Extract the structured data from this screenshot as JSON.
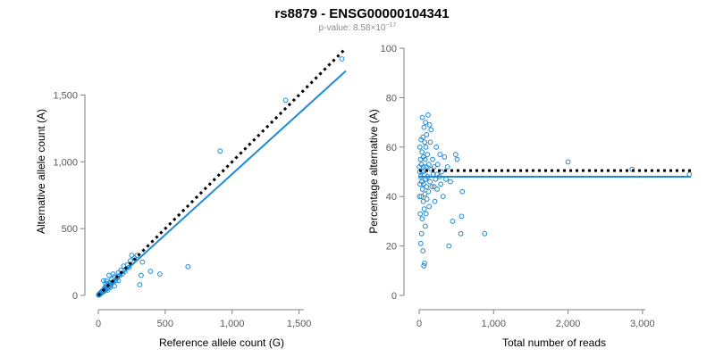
{
  "header": {
    "title": "rs8879 - ENSG00000104341",
    "pvalue_prefix": "p-value: 8.58×10",
    "pvalue_exponent": "−17"
  },
  "colors": {
    "points": "#1f8ad6",
    "fit_line": "#1f8ad6",
    "reference_line": "#000000",
    "axes": "#7f7f7f"
  },
  "chart_data": [
    {
      "type": "scatter",
      "xlabel": "Reference allele count (G)",
      "ylabel": "Alternative allele count (A)",
      "xlim": [
        0,
        1850
      ],
      "ylim": [
        0,
        1850
      ],
      "xticks": [
        0,
        500,
        1000,
        1500
      ],
      "xtick_labels": [
        "0",
        "500",
        "1,000",
        "1,500"
      ],
      "yticks": [
        0,
        500,
        1000,
        1500
      ],
      "ytick_labels": [
        "0",
        "500",
        "1,000",
        "1,500"
      ],
      "grid": false,
      "legend": "none",
      "points": [
        [
          1820,
          1770
        ],
        [
          1400,
          1460
        ],
        [
          910,
          1080
        ],
        [
          670,
          215
        ],
        [
          460,
          160
        ],
        [
          390,
          180
        ],
        [
          330,
          250
        ],
        [
          320,
          150
        ],
        [
          310,
          80
        ],
        [
          290,
          300
        ],
        [
          270,
          280
        ],
        [
          250,
          300
        ],
        [
          240,
          260
        ],
        [
          230,
          210
        ],
        [
          220,
          230
        ],
        [
          200,
          180
        ],
        [
          190,
          220
        ],
        [
          180,
          160
        ],
        [
          170,
          190
        ],
        [
          160,
          150
        ],
        [
          150,
          170
        ],
        [
          140,
          130
        ],
        [
          130,
          110
        ],
        [
          120,
          140
        ],
        [
          110,
          100
        ],
        [
          100,
          120
        ],
        [
          95,
          80
        ],
        [
          90,
          95
        ],
        [
          85,
          70
        ],
        [
          80,
          90
        ],
        [
          75,
          60
        ],
        [
          70,
          80
        ],
        [
          65,
          55
        ],
        [
          60,
          70
        ],
        [
          55,
          40
        ],
        [
          50,
          60
        ],
        [
          48,
          45
        ],
        [
          45,
          50
        ],
        [
          42,
          30
        ],
        [
          40,
          42
        ],
        [
          38,
          35
        ],
        [
          35,
          38
        ],
        [
          32,
          28
        ],
        [
          30,
          33
        ],
        [
          28,
          25
        ],
        [
          26,
          30
        ],
        [
          25,
          20
        ],
        [
          24,
          24
        ],
        [
          22,
          18
        ],
        [
          20,
          22
        ],
        [
          18,
          15
        ],
        [
          17,
          20
        ],
        [
          15,
          16
        ],
        [
          14,
          12
        ],
        [
          12,
          14
        ],
        [
          11,
          10
        ],
        [
          10,
          12
        ],
        [
          9,
          8
        ],
        [
          8,
          10
        ],
        [
          7,
          6
        ],
        [
          6,
          8
        ],
        [
          5,
          5
        ],
        [
          4,
          6
        ],
        [
          3,
          3
        ],
        [
          2,
          4
        ],
        [
          60,
          110
        ],
        [
          80,
          150
        ],
        [
          100,
          90
        ],
        [
          150,
          110
        ],
        [
          40,
          110
        ],
        [
          120,
          70
        ],
        [
          70,
          40
        ],
        [
          90,
          60
        ],
        [
          55,
          90
        ],
        [
          110,
          160
        ]
      ],
      "fit_line": {
        "x": [
          0,
          1850
        ],
        "y": [
          0,
          1680
        ]
      },
      "reference_line": {
        "x": [
          0,
          1850
        ],
        "y": [
          0,
          1850
        ]
      }
    },
    {
      "type": "scatter",
      "xlabel": "Total number of reads",
      "ylabel": "Percentage alternative (A)",
      "xlim": [
        0,
        3650
      ],
      "ylim": [
        0,
        100
      ],
      "xticks": [
        0,
        1000,
        2000,
        3000
      ],
      "xtick_labels": [
        "0",
        "1,000",
        "2,000",
        "3,000"
      ],
      "yticks": [
        0,
        20,
        40,
        60,
        80,
        100
      ],
      "ytick_labels": [
        "0",
        "20",
        "40",
        "60",
        "80",
        "100"
      ],
      "grid": false,
      "legend": "none",
      "points": [
        [
          3630,
          49
        ],
        [
          2860,
          51
        ],
        [
          2000,
          54
        ],
        [
          880,
          25
        ],
        [
          580,
          42
        ],
        [
          570,
          32
        ],
        [
          560,
          25
        ],
        [
          510,
          55
        ],
        [
          490,
          57
        ],
        [
          450,
          30
        ],
        [
          420,
          46
        ],
        [
          400,
          20
        ],
        [
          380,
          52
        ],
        [
          360,
          47
        ],
        [
          340,
          56
        ],
        [
          320,
          40
        ],
        [
          300,
          50
        ],
        [
          290,
          45
        ],
        [
          280,
          57
        ],
        [
          270,
          48
        ],
        [
          250,
          53
        ],
        [
          240,
          43
        ],
        [
          230,
          60
        ],
        [
          220,
          47
        ],
        [
          210,
          38
        ],
        [
          200,
          52
        ],
        [
          190,
          49
        ],
        [
          180,
          55
        ],
        [
          170,
          44
        ],
        [
          160,
          51
        ],
        [
          150,
          62
        ],
        [
          145,
          46
        ],
        [
          140,
          69
        ],
        [
          135,
          36
        ],
        [
          130,
          53
        ],
        [
          125,
          42
        ],
        [
          120,
          73
        ],
        [
          115,
          48
        ],
        [
          110,
          57
        ],
        [
          105,
          39
        ],
        [
          100,
          65
        ],
        [
          98,
          44
        ],
        [
          95,
          52
        ],
        [
          92,
          33
        ],
        [
          90,
          60
        ],
        [
          88,
          47
        ],
        [
          85,
          70
        ],
        [
          82,
          28
        ],
        [
          80,
          55
        ],
        [
          78,
          41
        ],
        [
          75,
          62
        ],
        [
          72,
          13
        ],
        [
          70,
          49
        ],
        [
          68,
          35
        ],
        [
          65,
          68
        ],
        [
          62,
          12
        ],
        [
          60,
          45
        ],
        [
          58,
          56
        ],
        [
          55,
          38
        ],
        [
          52,
          64
        ],
        [
          50,
          18
        ],
        [
          48,
          50
        ],
        [
          45,
          43
        ],
        [
          42,
          72
        ],
        [
          40,
          31
        ],
        [
          38,
          58
        ],
        [
          35,
          46
        ],
        [
          32,
          25
        ],
        [
          30,
          53
        ],
        [
          28,
          40
        ],
        [
          25,
          63
        ],
        [
          22,
          21
        ],
        [
          20,
          48
        ],
        [
          18,
          55
        ],
        [
          15,
          33
        ],
        [
          12,
          45
        ],
        [
          10,
          60
        ],
        [
          8,
          50
        ],
        [
          5,
          40
        ],
        [
          3,
          52
        ],
        [
          160,
          67
        ],
        [
          200,
          44
        ],
        [
          240,
          49
        ],
        [
          60,
          52
        ],
        [
          85,
          47
        ]
      ],
      "fit_line": {
        "x": [
          0,
          3650
        ],
        "y": [
          48,
          48
        ]
      },
      "reference_line": {
        "x": [
          0,
          3650
        ],
        "y": [
          50.5,
          50.5
        ]
      }
    }
  ]
}
